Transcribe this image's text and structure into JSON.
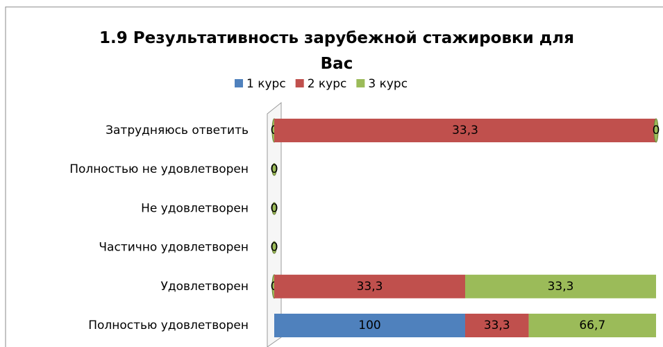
{
  "chart_data": {
    "type": "bar",
    "orientation": "horizontal",
    "stacking": "percent",
    "title": "1.9 Результативность зарубежной стажировки для Вас",
    "legend_position": "top",
    "categories": [
      "Затрудняюсь ответить",
      "Полностью не удовлетворен",
      "Не удовлетворен",
      "Частично удовлетворен",
      "Удовлетворен",
      "Полностью удовлетворен"
    ],
    "series": [
      {
        "name": "1 курс",
        "color": "#4f81bd",
        "values": [
          0,
          0,
          0,
          0,
          0,
          100
        ],
        "value_labels": [
          "0",
          "0",
          "0",
          "0",
          "0",
          "100"
        ]
      },
      {
        "name": "2 курс",
        "color": "#c0504d",
        "values": [
          33.3,
          0,
          0,
          0,
          33.3,
          33.3
        ],
        "value_labels": [
          "33,3",
          "0",
          "0",
          "0",
          "33,3",
          "33,3"
        ]
      },
      {
        "name": "3 курс",
        "color": "#9bbb59",
        "values": [
          0,
          0,
          0,
          0,
          33.3,
          66.7
        ],
        "value_labels": [
          "0",
          "0",
          "0",
          "0",
          "33,3",
          "66,7"
        ]
      }
    ]
  }
}
